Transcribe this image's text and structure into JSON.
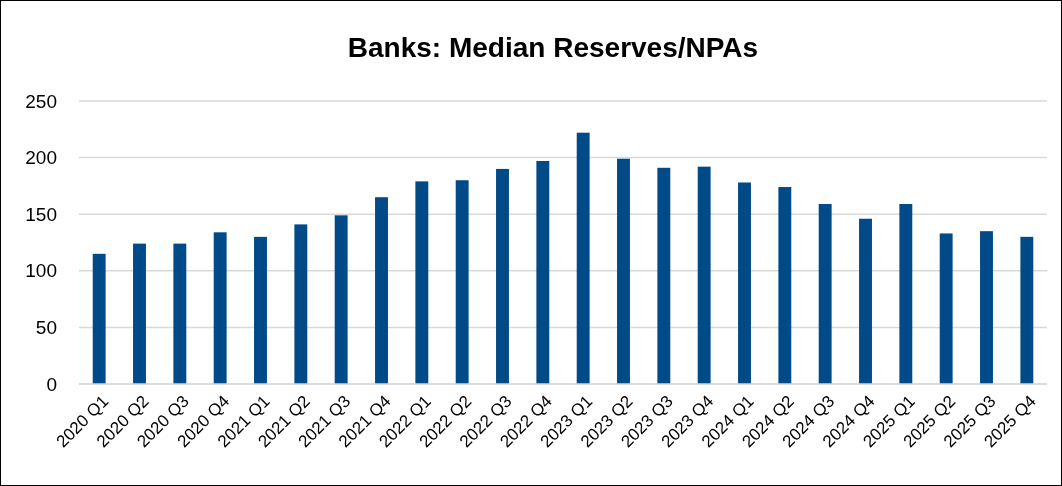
{
  "chart_data": {
    "type": "bar",
    "title": "Banks: Median Reserves/NPAs",
    "categories": [
      "2020 Q1",
      "2020 Q2",
      "2020 Q3",
      "2020 Q4",
      "2021 Q1",
      "2021 Q2",
      "2021 Q3",
      "2021 Q4",
      "2022 Q1",
      "2022 Q2",
      "2022 Q3",
      "2022 Q4",
      "2023 Q1",
      "2023 Q2",
      "2023 Q3",
      "2023 Q4",
      "2024 Q1",
      "2024 Q2",
      "2024 Q3",
      "2024 Q4",
      "2025 Q1",
      "2025 Q2",
      "2025 Q3",
      "2025 Q4"
    ],
    "values": [
      115,
      124,
      124,
      134,
      130,
      141,
      149,
      165,
      179,
      180,
      190,
      197,
      222,
      199,
      191,
      192,
      178,
      174,
      159,
      146,
      159,
      133,
      135,
      130
    ],
    "color": "#004a87",
    "ylim": [
      0,
      250
    ],
    "yticks": [
      0,
      50,
      100,
      150,
      200,
      250
    ],
    "grid": "y"
  }
}
